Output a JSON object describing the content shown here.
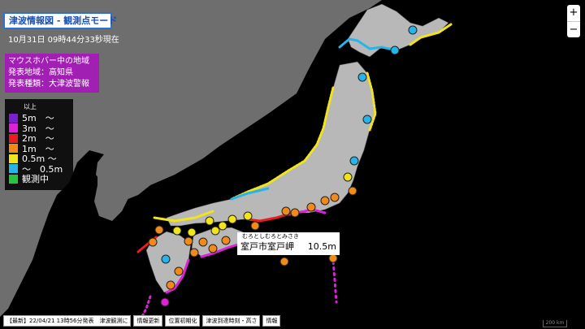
{
  "header": {
    "title": "津波情報図 - 観測点モード",
    "datetime": "10月31日 09時44分33秒現在"
  },
  "hover_info": {
    "heading": "マウスホバー中の地域",
    "region_line": "発表地域：高知県",
    "type_line": "発表種類：大津波警報"
  },
  "legend": {
    "head": "以上",
    "items": [
      {
        "label": "5m　～",
        "color": "#7b1fd0"
      },
      {
        "label": "3m　～",
        "color": "#e020d8"
      },
      {
        "label": "2m　～",
        "color": "#e81e1e"
      },
      {
        "label": "1m　～",
        "color": "#f28a1a"
      },
      {
        "label": "0.5m ～",
        "color": "#f2e41a"
      },
      {
        "label": "～　0.5m",
        "color": "#27b4e8"
      },
      {
        "label": "観測中",
        "color": "#27c43c"
      }
    ]
  },
  "zoom": {
    "plus": "+",
    "minus": "−"
  },
  "popup": {
    "reading": "むろとしむろとみさき",
    "place": "室戸市室戸岬",
    "value": "10.5m"
  },
  "bottom_bar": {
    "announcement": "【最新】22/04/21 13時56分発表　津波観測に",
    "buttons": [
      "情報更新",
      "位置初期化",
      "津波到達時刻・高さ",
      "情報"
    ]
  },
  "scale_label": "200 km",
  "colors": {
    "blue": "#27b4e8",
    "yellow": "#f2e41a",
    "orange": "#f28a1a",
    "red": "#e81e1e",
    "magenta": "#e020d8",
    "land_japan": "#b8b8b8",
    "land_asia": "#6e6e6e",
    "border": "#444444"
  }
}
